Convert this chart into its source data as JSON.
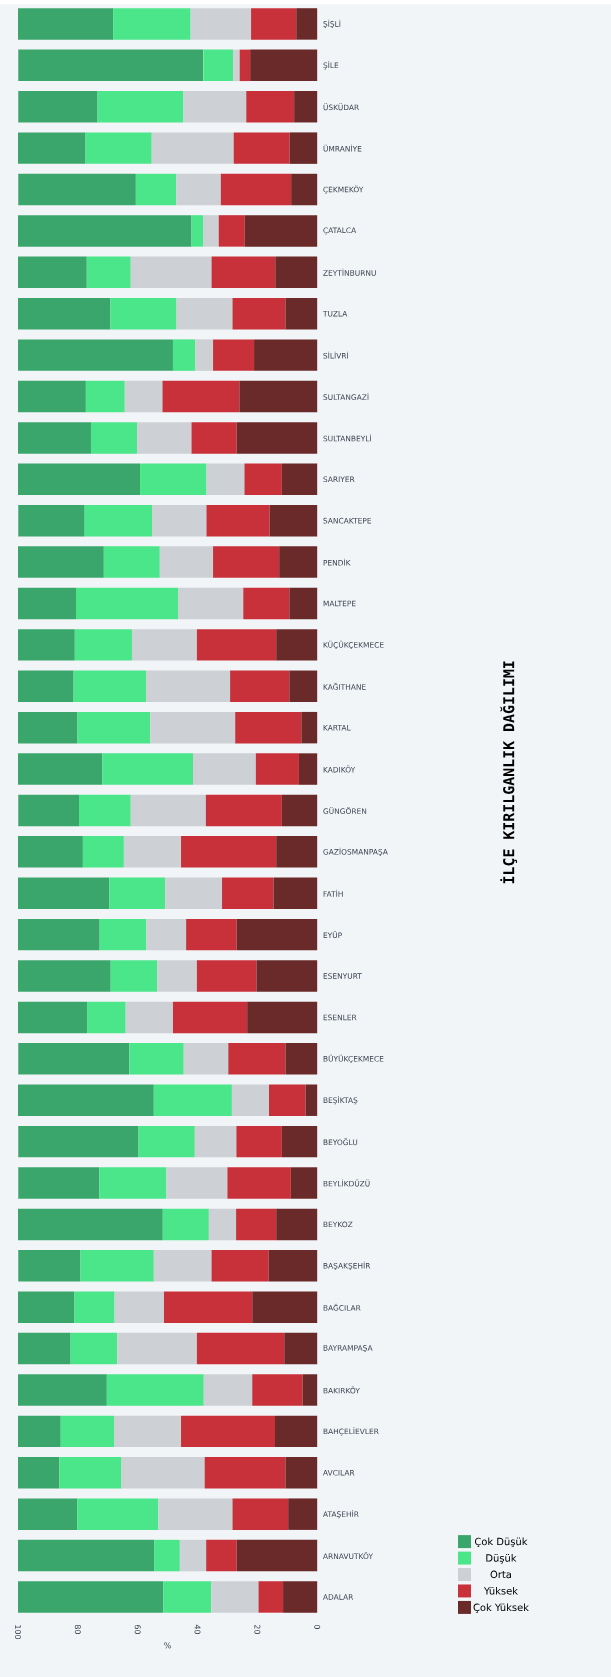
{
  "chart_data": {
    "type": "bar",
    "orientation": "horizontal",
    "stacked": true,
    "title": "İLÇE KIRILGANLIK DAĞILIMI",
    "xlabel": "%",
    "xlim": [
      100,
      0
    ],
    "xticks": [
      100,
      80,
      60,
      40,
      20,
      0
    ],
    "legend": "bottom right",
    "categories": [
      "ŞİŞLİ",
      "ŞİLE",
      "ÜSKÜDAR",
      "ÜMRANİYE",
      "ÇEKMEKÖY",
      "ÇATALCA",
      "ZEYTİNBURNU",
      "TUZLA",
      "SİLİVRİ",
      "SULTANGAZİ",
      "SULTANBEYLİ",
      "SARIYER",
      "SANCAKTEPE",
      "PENDİK",
      "MALTEPE",
      "KÜÇÜKÇEKMECE",
      "KAĞITHANE",
      "KARTAL",
      "KADIKÖY",
      "GÜNGÖREN",
      "GAZİOSMANPAŞA",
      "FATİH",
      "EYÜP",
      "ESENYURT",
      "ESENLER",
      "BÜYÜKÇEKMECE",
      "BEŞİKTAŞ",
      "BEYOĞLU",
      "BEYLİKDÜZÜ",
      "BEYKOZ",
      "BAŞAKŞEHİR",
      "BAĞCILAR",
      "BAYRAMPAŞA",
      "BAKIRKÖY",
      "BAHÇELİEVLER",
      "AVCILAR",
      "ATAŞEHİR",
      "ARNAVUTKÖY",
      "ADALAR"
    ],
    "series": [
      {
        "name": "Çok Yüksek",
        "color": "#6a2a2a",
        "values": [
          7.0,
          22.4,
          7.7,
          9.2,
          8.7,
          24.2,
          14.0,
          10.6,
          21.1,
          26.0,
          26.9,
          11.8,
          15.9,
          12.7,
          9.3,
          13.7,
          9.3,
          5.3,
          6.1,
          11.8,
          13.7,
          14.6,
          26.9,
          20.3,
          23.4,
          10.6,
          3.9,
          11.8,
          8.8,
          13.7,
          16.2,
          21.7,
          11.0,
          4.9,
          14.1,
          10.6,
          9.7,
          26.9,
          11.4
        ]
      },
      {
        "name": "Yüksek",
        "color": "#c8313a",
        "values": [
          15.1,
          3.5,
          16.0,
          18.7,
          23.5,
          8.7,
          21.3,
          17.7,
          13.7,
          25.7,
          15.1,
          12.5,
          21.1,
          22.1,
          15.4,
          26.5,
          19.8,
          22.1,
          14.4,
          25.4,
          31.8,
          17.2,
          16.9,
          19.9,
          24.8,
          19.1,
          12.2,
          15.2,
          21.2,
          13.4,
          19.1,
          29.5,
          29.2,
          16.8,
          31.4,
          27.0,
          18.6,
          10.2,
          8.2
        ]
      },
      {
        "name": "Orta",
        "color": "#cdd0d4",
        "values": [
          20.2,
          2.2,
          21.0,
          27.4,
          14.9,
          5.1,
          27.0,
          18.7,
          5.9,
          12.6,
          18.2,
          12.7,
          18.2,
          17.8,
          21.8,
          21.7,
          28.1,
          28.4,
          21.0,
          25.1,
          19.1,
          19.0,
          13.3,
          13.3,
          15.8,
          14.9,
          12.4,
          13.9,
          20.4,
          9.1,
          19.3,
          16.5,
          26.6,
          16.2,
          22.4,
          27.8,
          24.8,
          8.8,
          15.8
        ]
      },
      {
        "name": "Düşük",
        "color": "#4be58a",
        "values": [
          25.9,
          9.9,
          28.7,
          22.1,
          13.5,
          4.0,
          14.7,
          22.1,
          7.5,
          13.0,
          15.4,
          22.2,
          22.5,
          18.7,
          34.1,
          19.1,
          24.2,
          24.3,
          30.3,
          17.3,
          13.7,
          18.7,
          15.6,
          15.5,
          12.9,
          18.2,
          26.1,
          18.8,
          22.4,
          15.4,
          24.5,
          13.4,
          15.6,
          32.4,
          17.8,
          20.8,
          27.1,
          8.6,
          16.0
        ]
      },
      {
        "name": "Çok Düşük",
        "color": "#3ba66b",
        "values": [
          31.8,
          61.9,
          26.5,
          22.7,
          39.3,
          58.0,
          23.0,
          30.9,
          51.8,
          22.7,
          24.4,
          40.8,
          22.2,
          28.7,
          19.4,
          19.0,
          18.7,
          19.9,
          28.3,
          20.3,
          21.7,
          30.5,
          27.4,
          31.0,
          23.1,
          37.1,
          45.5,
          40.2,
          27.1,
          48.5,
          20.8,
          19.0,
          17.7,
          29.7,
          14.3,
          13.8,
          19.9,
          45.5,
          48.6
        ]
      }
    ]
  }
}
